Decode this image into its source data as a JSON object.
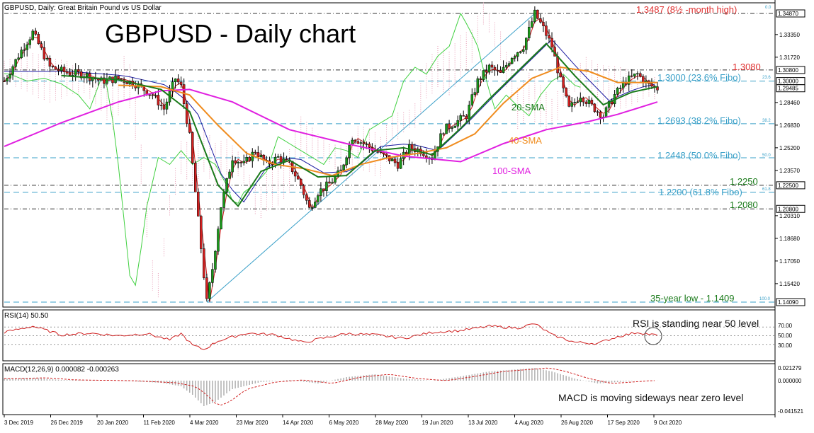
{
  "chart_header": {
    "symbol": "GBPUSD, Daily:  Great Britain Pound vs US Dollar",
    "main_title": "GBPUSD - Daily chart"
  },
  "price_panel": {
    "ylim": [
      1.1409,
      1.3487
    ],
    "y_ticks": [
      "1.33350",
      "1.31720",
      "1.28460",
      "1.26830",
      "1.25200",
      "1.23570",
      "1.20310",
      "1.18680",
      "1.17050",
      "1.15420"
    ],
    "price_tags": [
      {
        "label": "1.34870",
        "value": 1.3487
      },
      {
        "label": "1.30800",
        "value": 1.308
      },
      {
        "label": "1.30000",
        "value": 1.3
      },
      {
        "label": "1.29485",
        "value": 1.29485
      },
      {
        "label": "1.22500",
        "value": 1.225
      },
      {
        "label": "1.20800",
        "value": 1.208
      },
      {
        "label": "1.14090",
        "value": 1.1409
      }
    ],
    "levels": [
      {
        "value": 1.3487,
        "style": "dashdot",
        "color": "#333333"
      },
      {
        "value": 1.308,
        "style": "dashdot",
        "color": "#333333"
      },
      {
        "value": 1.3,
        "style": "dashed",
        "color": "#3aa0c8"
      },
      {
        "value": 1.2693,
        "style": "dashed",
        "color": "#3aa0c8"
      },
      {
        "value": 1.2448,
        "style": "dashed",
        "color": "#3aa0c8"
      },
      {
        "value": 1.225,
        "style": "dashdot",
        "color": "#333333"
      },
      {
        "value": 1.22,
        "style": "dashed",
        "color": "#3aa0c8"
      },
      {
        "value": 1.208,
        "style": "dashdot",
        "color": "#333333"
      },
      {
        "value": 1.1409,
        "style": "dashed",
        "color": "#3aa0c8"
      }
    ],
    "annotations": {
      "high": "1.3487 (8½ -month high)",
      "r1": "1.3080",
      "fibo236": "1.3000 (23.6% Fibo)",
      "fibo382": "1.2693 (38.2% Fibo)",
      "fibo50": "1.2448 (50.0% Fibo)",
      "r2250": "1.2250",
      "fibo618": "1.2200 (61.8% Fibo)",
      "r2080": "1.2080",
      "low": "35-year low - 1.1409",
      "sma20": "20-SMA",
      "sma40": "40-SMA",
      "sma100": "100-SMA"
    },
    "fibo_markers": {
      "f0": "0.0",
      "f236": "23.6",
      "f382": "38.2",
      "f50": "50.0",
      "f618": "61.8",
      "f100": "100.0"
    },
    "colors": {
      "sma20": "#1a7a1a",
      "sma40": "#f08c1e",
      "sma100": "#e020e0",
      "fibo": "#3aa0c8",
      "bull": "#1a9a1a",
      "bear": "#d42020",
      "ichimoku": "#e080a0",
      "chikou": "#40d040",
      "kijun": "#1a1aa0",
      "tenkan": "#d02020"
    }
  },
  "rsi_panel": {
    "label": "RSI(14) 50.50",
    "ylim": [
      0,
      100
    ],
    "ticks": [
      "70.00",
      "50.00",
      "30.00"
    ],
    "note": "RSI is standing near 50 level"
  },
  "macd_panel": {
    "label": "MACD(12,26,9) 0.000082 -0.000263",
    "ticks": [
      "0.021279",
      "0.000000",
      "-0.041521"
    ],
    "note": "MACD is moving sideways near zero level"
  },
  "x_axis": {
    "dates": [
      "3 Dec 2019",
      "26 Dec 2019",
      "20 Jan 2020",
      "11 Feb 2020",
      "4 Mar 2020",
      "23 Mar 2020",
      "14 Apr 2020",
      "6 May 2020",
      "28 May 2020",
      "19 Jun 2020",
      "13 Jul 2020",
      "4 Aug 2020",
      "26 Aug 2020",
      "17 Sep 2020",
      "9 Oct 2020"
    ]
  },
  "chart_data": {
    "type": "candlestick",
    "title": "GBPUSD - Daily chart",
    "x_dates": [
      "3 Dec 2019",
      "26 Dec 2019",
      "20 Jan 2020",
      "11 Feb 2020",
      "4 Mar 2020",
      "23 Mar 2020",
      "14 Apr 2020",
      "6 May 2020",
      "28 May 2020",
      "19 Jun 2020",
      "13 Jul 2020",
      "4 Aug 2020",
      "26 Aug 2020",
      "17 Sep 2020",
      "9 Oct 2020"
    ],
    "close_path": [
      [
        0,
        1.3
      ],
      [
        6,
        1.322
      ],
      [
        10,
        1.335
      ],
      [
        16,
        1.31
      ],
      [
        22,
        1.306
      ],
      [
        28,
        1.305
      ],
      [
        34,
        1.3
      ],
      [
        40,
        1.302
      ],
      [
        46,
        1.298
      ],
      [
        52,
        1.29
      ],
      [
        56,
        1.28
      ],
      [
        60,
        1.302
      ],
      [
        62,
        1.296
      ],
      [
        65,
        1.26
      ],
      [
        68,
        1.2
      ],
      [
        70,
        1.16
      ],
      [
        71,
        1.1409
      ],
      [
        73,
        1.165
      ],
      [
        76,
        1.21
      ],
      [
        80,
        1.245
      ],
      [
        84,
        1.24
      ],
      [
        88,
        1.25
      ],
      [
        92,
        1.24
      ],
      [
        96,
        1.245
      ],
      [
        100,
        1.24
      ],
      [
        104,
        1.225
      ],
      [
        107,
        1.208
      ],
      [
        110,
        1.22
      ],
      [
        114,
        1.226
      ],
      [
        118,
        1.235
      ],
      [
        122,
        1.26
      ],
      [
        126,
        1.255
      ],
      [
        130,
        1.25
      ],
      [
        134,
        1.245
      ],
      [
        138,
        1.24
      ],
      [
        142,
        1.252
      ],
      [
        146,
        1.25
      ],
      [
        150,
        1.245
      ],
      [
        154,
        1.265
      ],
      [
        158,
        1.27
      ],
      [
        162,
        1.275
      ],
      [
        166,
        1.3
      ],
      [
        170,
        1.31
      ],
      [
        174,
        1.305
      ],
      [
        178,
        1.318
      ],
      [
        182,
        1.325
      ],
      [
        186,
        1.3487
      ],
      [
        189,
        1.338
      ],
      [
        192,
        1.325
      ],
      [
        195,
        1.3
      ],
      [
        198,
        1.28
      ],
      [
        202,
        1.29
      ],
      [
        206,
        1.282
      ],
      [
        210,
        1.275
      ],
      [
        214,
        1.29
      ],
      [
        218,
        1.3
      ],
      [
        222,
        1.305
      ],
      [
        226,
        1.297
      ],
      [
        229,
        1.2948
      ]
    ],
    "sma20_path": [
      [
        20,
        1.304
      ],
      [
        40,
        1.301
      ],
      [
        55,
        1.294
      ],
      [
        65,
        1.278
      ],
      [
        75,
        1.225
      ],
      [
        82,
        1.21
      ],
      [
        90,
        1.235
      ],
      [
        100,
        1.243
      ],
      [
        110,
        1.231
      ],
      [
        120,
        1.232
      ],
      [
        130,
        1.25
      ],
      [
        140,
        1.252
      ],
      [
        150,
        1.247
      ],
      [
        160,
        1.266
      ],
      [
        170,
        1.287
      ],
      [
        180,
        1.307
      ],
      [
        190,
        1.327
      ],
      [
        200,
        1.304
      ],
      [
        210,
        1.283
      ],
      [
        220,
        1.292
      ],
      [
        229,
        1.296
      ]
    ],
    "sma40_path": [
      [
        40,
        1.297
      ],
      [
        55,
        1.296
      ],
      [
        65,
        1.29
      ],
      [
        75,
        1.268
      ],
      [
        85,
        1.248
      ],
      [
        95,
        1.24
      ],
      [
        105,
        1.237
      ],
      [
        115,
        1.232
      ],
      [
        125,
        1.24
      ],
      [
        135,
        1.245
      ],
      [
        145,
        1.248
      ],
      [
        155,
        1.252
      ],
      [
        165,
        1.262
      ],
      [
        175,
        1.284
      ],
      [
        185,
        1.302
      ],
      [
        195,
        1.31
      ],
      [
        205,
        1.307
      ],
      [
        215,
        1.299
      ],
      [
        229,
        1.299
      ]
    ],
    "sma100_path": [
      [
        0,
        1.253
      ],
      [
        20,
        1.27
      ],
      [
        40,
        1.285
      ],
      [
        55,
        1.293
      ],
      [
        65,
        1.294
      ],
      [
        80,
        1.285
      ],
      [
        100,
        1.265
      ],
      [
        120,
        1.255
      ],
      [
        140,
        1.246
      ],
      [
        160,
        1.242
      ],
      [
        175,
        1.255
      ],
      [
        190,
        1.265
      ],
      [
        205,
        1.271
      ],
      [
        215,
        1.276
      ],
      [
        229,
        1.285
      ]
    ],
    "rsi_path": [
      [
        0,
        58
      ],
      [
        10,
        72
      ],
      [
        20,
        52
      ],
      [
        30,
        56
      ],
      [
        40,
        50
      ],
      [
        50,
        55
      ],
      [
        58,
        40
      ],
      [
        62,
        55
      ],
      [
        66,
        28
      ],
      [
        70,
        18
      ],
      [
        75,
        38
      ],
      [
        85,
        56
      ],
      [
        95,
        52
      ],
      [
        105,
        34
      ],
      [
        110,
        42
      ],
      [
        120,
        55
      ],
      [
        130,
        52
      ],
      [
        140,
        44
      ],
      [
        150,
        58
      ],
      [
        160,
        62
      ],
      [
        170,
        72
      ],
      [
        180,
        68
      ],
      [
        186,
        78
      ],
      [
        192,
        52
      ],
      [
        200,
        35
      ],
      [
        208,
        32
      ],
      [
        215,
        48
      ],
      [
        222,
        58
      ],
      [
        229,
        50.5
      ]
    ],
    "macd_hist": [
      [
        0,
        0.003
      ],
      [
        10,
        0.004
      ],
      [
        20,
        0.001
      ],
      [
        40,
        0.0
      ],
      [
        55,
        -0.003
      ],
      [
        62,
        -0.008
      ],
      [
        66,
        -0.02
      ],
      [
        70,
        -0.036
      ],
      [
        74,
        -0.03
      ],
      [
        80,
        -0.012
      ],
      [
        90,
        -0.002
      ],
      [
        100,
        0.001
      ],
      [
        110,
        -0.004
      ],
      [
        120,
        0.005
      ],
      [
        130,
        0.009
      ],
      [
        140,
        0.003
      ],
      [
        150,
        0.0
      ],
      [
        160,
        0.006
      ],
      [
        170,
        0.013
      ],
      [
        180,
        0.016
      ],
      [
        186,
        0.018
      ],
      [
        192,
        0.013
      ],
      [
        200,
        0.003
      ],
      [
        208,
        -0.004
      ],
      [
        215,
        -0.002
      ],
      [
        222,
        0.0
      ],
      [
        229,
        0.0001
      ]
    ]
  }
}
